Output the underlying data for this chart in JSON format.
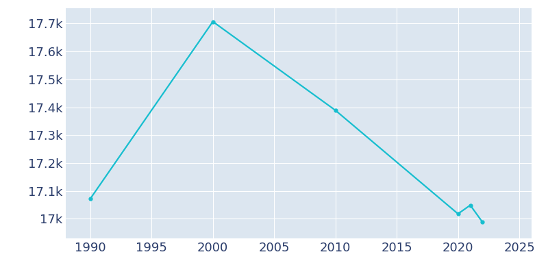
{
  "years": [
    1990,
    2000,
    2010,
    2020,
    2021,
    2022
  ],
  "population": [
    17072,
    17707,
    17389,
    17018,
    17049,
    16988
  ],
  "line_color": "#17becf",
  "bg_color": "#ffffff",
  "plot_bg_color": "#dce6f0",
  "tick_label_color": "#2b3d6b",
  "grid_color": "#ffffff",
  "xlim": [
    1988,
    2026
  ],
  "ylim": [
    16930,
    17755
  ],
  "yticks": [
    17000,
    17100,
    17200,
    17300,
    17400,
    17500,
    17600,
    17700
  ],
  "xticks": [
    1990,
    1995,
    2000,
    2005,
    2010,
    2015,
    2020,
    2025
  ],
  "marker_size": 3.5,
  "line_width": 1.6,
  "tick_fontsize": 13
}
